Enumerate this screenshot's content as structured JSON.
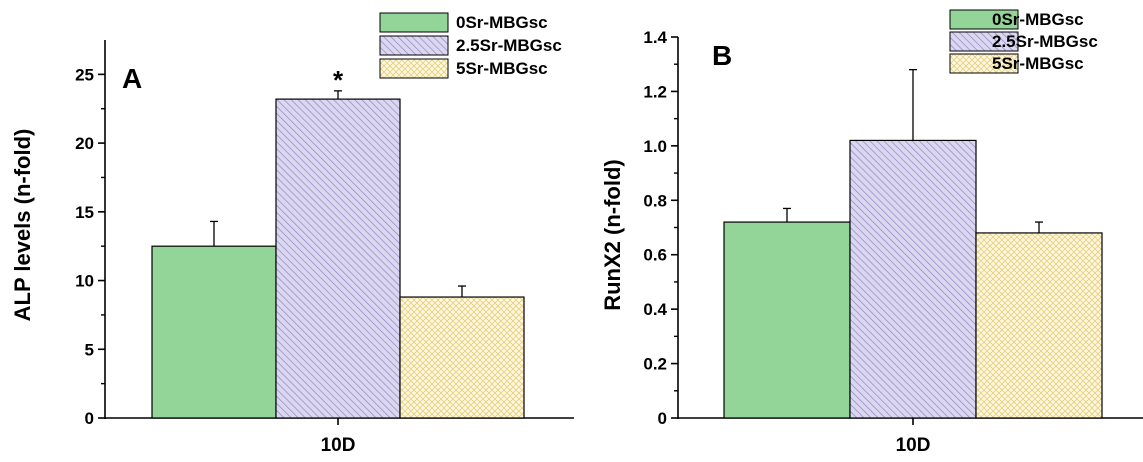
{
  "colors": {
    "series_0": "#93d498",
    "series_1": "#dcd7f0",
    "series_1_hatch": "#8f86c4",
    "series_2": "#fdf7e3",
    "series_2_hatch": "#e8cf7a",
    "axis": "#000000"
  },
  "chart_data": [
    {
      "type": "bar",
      "panel_label": "A",
      "xlabel": "10D",
      "ylabel": "ALP levels (n-fold)",
      "ylim": [
        0,
        27.5
      ],
      "yticks": [
        0,
        5,
        10,
        15,
        20,
        25
      ],
      "ytick_labels": [
        "0",
        "5",
        "10",
        "15",
        "20",
        "25"
      ],
      "categories": [
        "10D"
      ],
      "legend": "top-right",
      "grid": false,
      "series": [
        {
          "name": "0Sr-MBGsc",
          "values": [
            12.5
          ],
          "error": [
            1.8
          ],
          "significance": ""
        },
        {
          "name": "2.5Sr-MBGsc",
          "values": [
            23.2
          ],
          "error": [
            0.6
          ],
          "significance": "*"
        },
        {
          "name": "5Sr-MBGsc",
          "values": [
            8.8
          ],
          "error": [
            0.8
          ],
          "significance": ""
        }
      ]
    },
    {
      "type": "bar",
      "panel_label": "B",
      "xlabel": "10D",
      "ylabel": "RunX2  (n-fold)",
      "ylim": [
        0,
        1.4
      ],
      "yticks": [
        0,
        0.2,
        0.4,
        0.6,
        0.8,
        1.0,
        1.2,
        1.4
      ],
      "ytick_labels": [
        "0",
        "0.2",
        "0.4",
        "0.6",
        "0.8",
        "1.0",
        "1.2",
        "1.4"
      ],
      "categories": [
        "10D"
      ],
      "legend": "top-right",
      "grid": false,
      "series": [
        {
          "name": "0Sr-MBGsc",
          "values": [
            0.72
          ],
          "error": [
            0.05
          ],
          "significance": ""
        },
        {
          "name": "2.5Sr-MBGsc",
          "values": [
            1.02
          ],
          "error": [
            0.26
          ],
          "significance": ""
        },
        {
          "name": "5Sr-MBGsc",
          "values": [
            0.68
          ],
          "error": [
            0.04
          ],
          "significance": ""
        }
      ]
    }
  ]
}
